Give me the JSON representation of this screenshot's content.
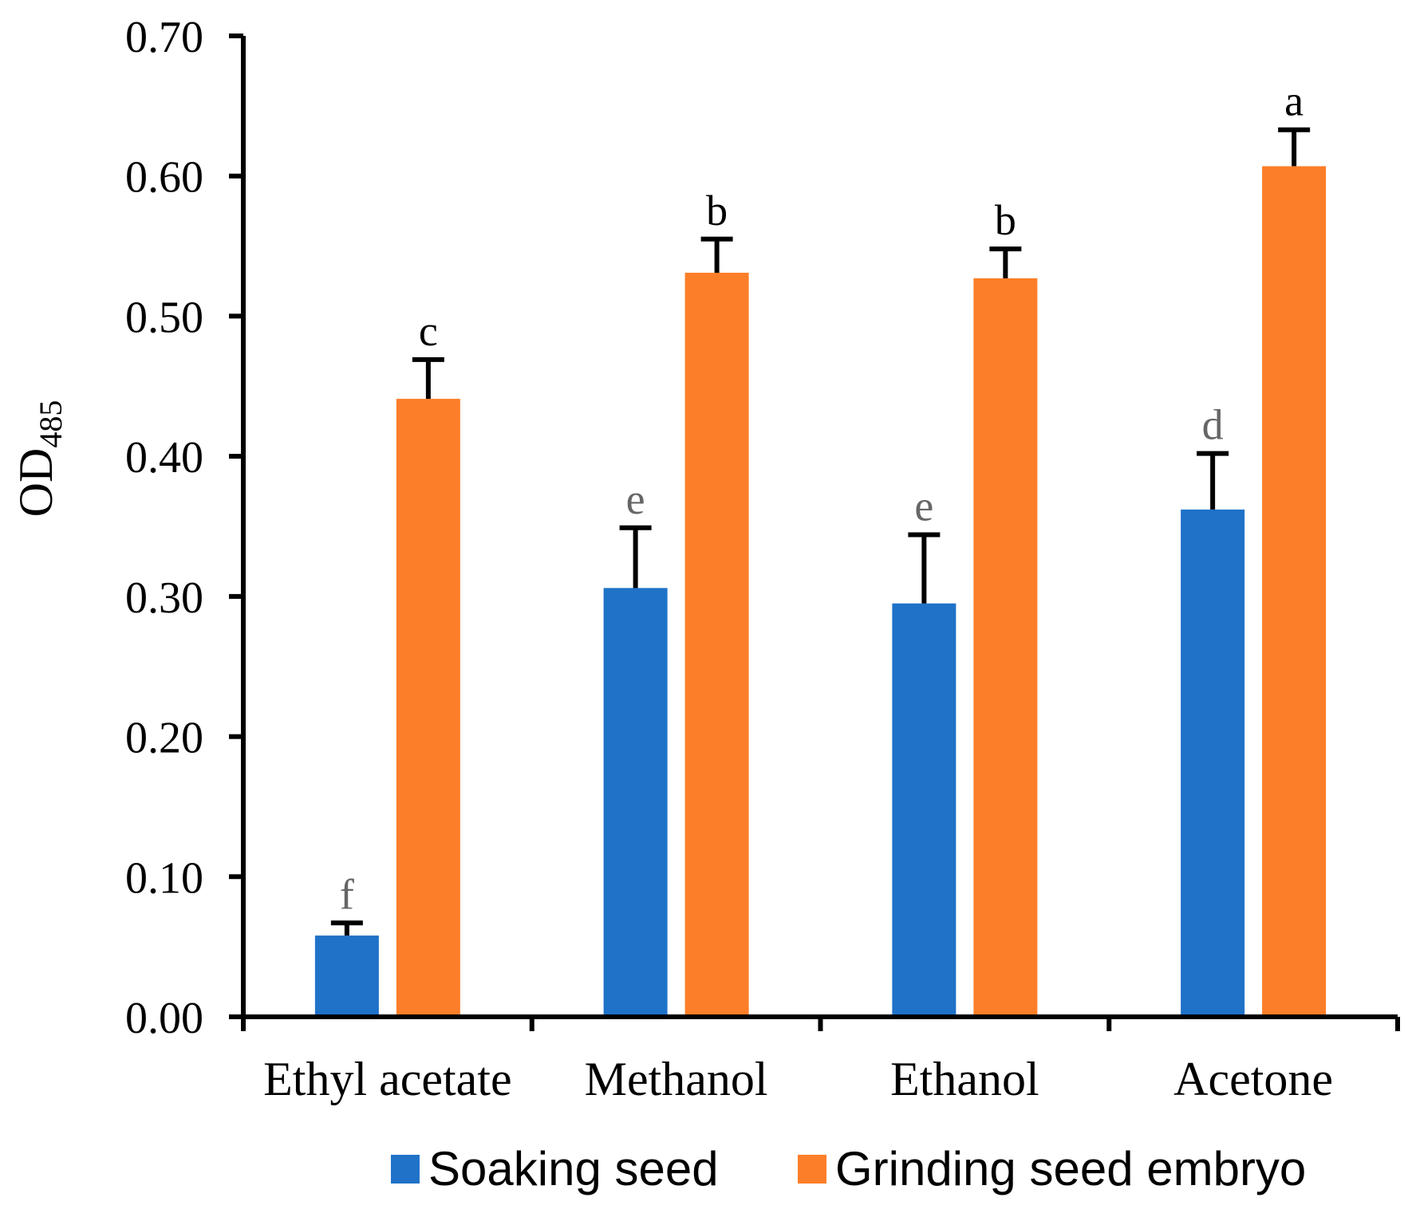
{
  "chart_data": {
    "type": "bar",
    "title": "",
    "xlabel": "",
    "ylabel": {
      "main": "OD",
      "subscript": "485"
    },
    "ylim": [
      0,
      0.7
    ],
    "yticks": [
      "0.00",
      "0.10",
      "0.20",
      "0.30",
      "0.40",
      "0.50",
      "0.60",
      "0.70"
    ],
    "categories": [
      "Ethyl acetate",
      "Methanol",
      "Ethanol",
      "Acetone"
    ],
    "series": [
      {
        "name": "Soaking seed",
        "color": "#1f72c8",
        "label_color": "#666666",
        "values": [
          0.058,
          0.306,
          0.295,
          0.362
        ],
        "errors": [
          0.009,
          0.043,
          0.049,
          0.04
        ],
        "labels": [
          "f",
          "e",
          "e",
          "d"
        ]
      },
      {
        "name": "Grinding seed embryo",
        "color": "#fd7e28",
        "label_color": "#000000",
        "values": [
          0.441,
          0.531,
          0.527,
          0.607
        ],
        "errors": [
          0.028,
          0.024,
          0.021,
          0.026
        ],
        "labels": [
          "c",
          "b",
          "b",
          "a"
        ]
      }
    ],
    "legend": {
      "position": "bottom",
      "entries": [
        "Soaking seed",
        "Grinding seed embryo"
      ]
    },
    "grid": false
  }
}
